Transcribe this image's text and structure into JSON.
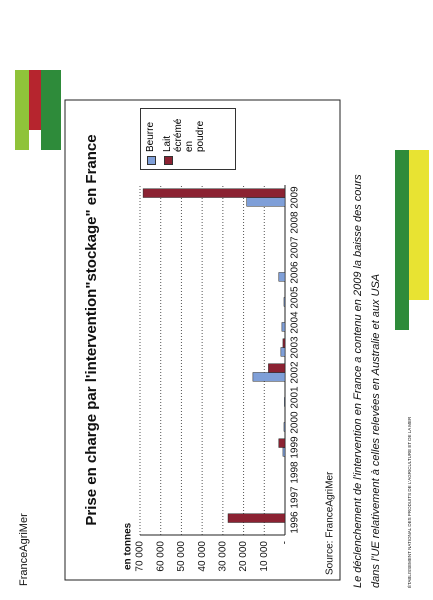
{
  "logo": "FranceAgriMer",
  "chart_data": {
    "type": "bar",
    "title": "Prise en charge par l'intervention\"stockage\" en France",
    "y_label": "en tonnes",
    "categories": [
      "1996",
      "1997",
      "1998",
      "1999",
      "2000",
      "2001",
      "2002",
      "2003",
      "2004",
      "2005",
      "2006",
      "2007",
      "2008",
      "2009"
    ],
    "series": [
      {
        "name": "Beurre",
        "color": "#7f9fd8",
        "values": [
          0,
          0,
          0,
          1000,
          500,
          300,
          15500,
          2000,
          1500,
          500,
          3000,
          0,
          0,
          18500
        ]
      },
      {
        "name": "Lait écrémé en poudre",
        "color": "#8b2232",
        "values": [
          27500,
          0,
          0,
          3000,
          0,
          0,
          8000,
          1000,
          0,
          0,
          0,
          0,
          0,
          68500
        ]
      }
    ],
    "ylim": [
      0,
      70000
    ],
    "yticks": [
      {
        "value": 0,
        "label": "-"
      },
      {
        "value": 10000,
        "label": "10 000"
      },
      {
        "value": 20000,
        "label": "20 000"
      },
      {
        "value": 30000,
        "label": "30 000"
      },
      {
        "value": 40000,
        "label": "40 000"
      },
      {
        "value": 50000,
        "label": "50 000"
      },
      {
        "value": 60000,
        "label": "60 000"
      },
      {
        "value": 70000,
        "label": "70 000"
      }
    ],
    "grid": true,
    "source": "Source:  FranceAgriMer"
  },
  "footer": {
    "lines": [
      "Le déclenchement de l'intervention en France a contenu en 2009 la baisse des cours",
      "dans l'UE relativement à celles relevées en Australie et aux USA"
    ],
    "org": "ÉTABLISSEMENT NATIONAL DES PRODUITS DE L'AGRICULTURE ET DE LA MER"
  }
}
